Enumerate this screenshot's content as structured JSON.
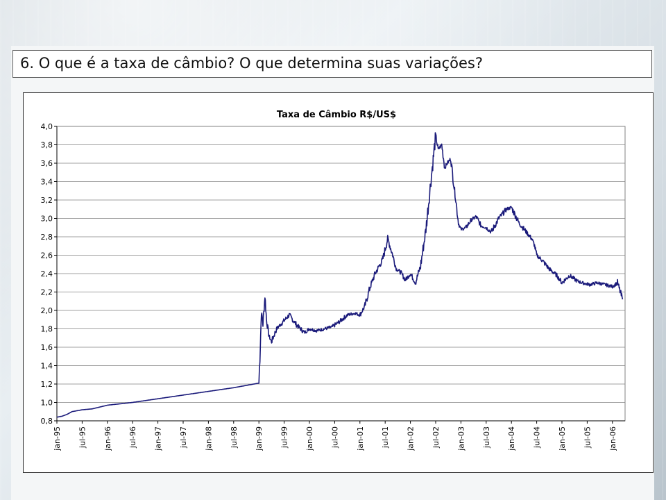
{
  "slide": {
    "title": "6.  O que é a taxa de câmbio? O que determina suas variações?"
  },
  "chart_data": {
    "type": "line",
    "title": "Taxa de Câmbio R$/US$",
    "xlabel": "",
    "ylabel": "",
    "ylim": [
      0.8,
      4.0
    ],
    "yticks": [
      "0,8",
      "1,0",
      "1,2",
      "1,4",
      "1,6",
      "1,8",
      "2,0",
      "2,2",
      "2,4",
      "2,6",
      "2,8",
      "3,0",
      "3,2",
      "3,4",
      "3,6",
      "3,8",
      "4,0"
    ],
    "xticks": [
      "jan-95",
      "jul-95",
      "jan-96",
      "jul-96",
      "jan-97",
      "jul-97",
      "jan-98",
      "jul-98",
      "jan-99",
      "jul-99",
      "jan-00",
      "jul-00",
      "jan-01",
      "jul-01",
      "jan-02",
      "jul-02",
      "jan-03",
      "jul-03",
      "jan-04",
      "jul-04",
      "jan-05",
      "jul-05",
      "jan-06"
    ],
    "grid": true,
    "legend": "none",
    "line_color": "#1a1a7a",
    "series": [
      {
        "x": [
          1995.0,
          1995.1,
          1995.2,
          1995.3,
          1995.5,
          1995.7,
          1996.0,
          1996.5,
          1997.0,
          1997.5,
          1998.0,
          1998.5,
          1999.0,
          1999.02,
          1999.05,
          1999.08,
          1999.12,
          1999.15,
          1999.2,
          1999.25,
          1999.35,
          1999.45,
          1999.6,
          1999.75,
          1999.9,
          2000.0,
          2000.15,
          2000.3,
          2000.45,
          2000.6,
          2000.75,
          2000.9,
          2001.0,
          2001.1,
          2001.2,
          2001.3,
          2001.45,
          2001.55,
          2001.65,
          2001.72,
          2001.8,
          2001.9,
          2002.0,
          2002.1,
          2002.2,
          2002.3,
          2002.4,
          2002.5,
          2002.55,
          2002.62,
          2002.68,
          2002.73,
          2002.8,
          2002.85,
          2002.9,
          2002.95,
          2003.0,
          2003.1,
          2003.2,
          2003.3,
          2003.4,
          2003.5,
          2003.6,
          2003.75,
          2003.9,
          2004.0,
          2004.15,
          2004.3,
          2004.4,
          2004.45,
          2004.5,
          2004.6,
          2004.75,
          2004.9,
          2005.0,
          2005.15,
          2005.3,
          2005.4,
          2005.55,
          2005.7,
          2005.85,
          2006.0,
          2006.1,
          2006.2
        ],
        "y": [
          0.84,
          0.85,
          0.87,
          0.9,
          0.92,
          0.93,
          0.97,
          1.0,
          1.04,
          1.08,
          1.12,
          1.16,
          1.21,
          1.5,
          1.98,
          1.85,
          2.16,
          1.9,
          1.72,
          1.66,
          1.8,
          1.86,
          1.95,
          1.84,
          1.76,
          1.8,
          1.78,
          1.8,
          1.82,
          1.88,
          1.95,
          1.97,
          1.95,
          2.05,
          2.25,
          2.4,
          2.55,
          2.78,
          2.6,
          2.45,
          2.42,
          2.33,
          2.4,
          2.3,
          2.48,
          2.85,
          3.38,
          3.9,
          3.75,
          3.8,
          3.55,
          3.6,
          3.65,
          3.4,
          3.2,
          2.95,
          2.88,
          2.9,
          2.98,
          3.02,
          2.92,
          2.9,
          2.85,
          3.0,
          3.1,
          3.12,
          2.95,
          2.85,
          2.78,
          2.72,
          2.6,
          2.55,
          2.45,
          2.38,
          2.3,
          2.38,
          2.32,
          2.3,
          2.28,
          2.3,
          2.28,
          2.26,
          2.3,
          2.12
        ]
      }
    ]
  }
}
